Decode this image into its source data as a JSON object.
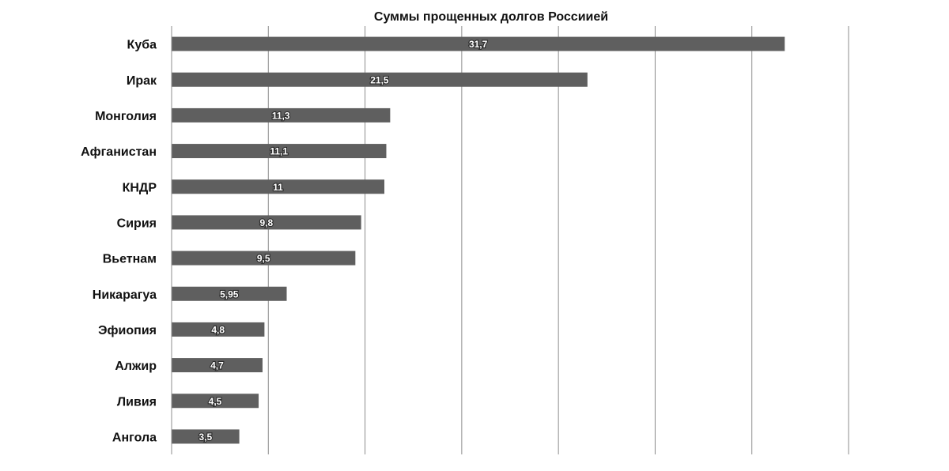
{
  "chart_data": {
    "type": "bar",
    "orientation": "horizontal",
    "title": "Суммы прощенных долгов России­ей",
    "categories": [
      "Куба",
      "Ирак",
      "Монголия",
      "Афганистан",
      "КНДР",
      "Сирия",
      "Вьетнам",
      "Никарагуа",
      "Эфиопия",
      "Алжир",
      "Ливия",
      "Ангола"
    ],
    "values": [
      31.7,
      21.5,
      11.3,
      11.1,
      11,
      9.8,
      9.5,
      5.95,
      4.8,
      4.7,
      4.5,
      3.5
    ],
    "value_labels": [
      "31,7",
      "21,5",
      "11,3",
      "11,1",
      "11",
      "9,8",
      "9,5",
      "5,95",
      "4,8",
      "4,7",
      "4,5",
      "3,5"
    ],
    "xlabel": "",
    "ylabel": "",
    "xlim": [
      0,
      35
    ],
    "grid": true,
    "bar_color": "#5f5f5f"
  }
}
